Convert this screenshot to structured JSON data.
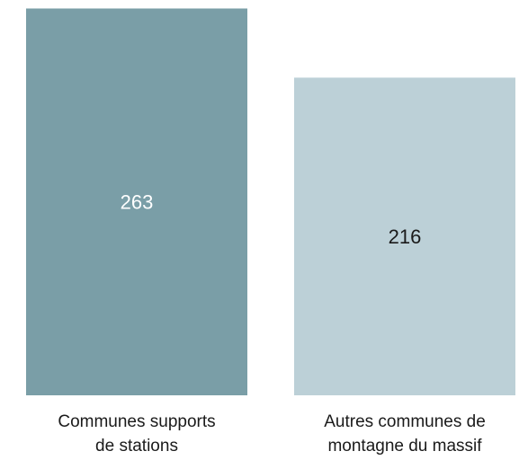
{
  "chart_data": {
    "type": "bar",
    "categories": [
      [
        "Communes supports",
        "de stations"
      ],
      [
        "Autres communes de",
        "montagne du massif"
      ]
    ],
    "values": [
      263,
      216
    ],
    "colors": [
      "#7a9ea7",
      "#bcd0d7"
    ],
    "value_label_colors": [
      "#ffffff",
      "#1a1a1a"
    ],
    "title": "",
    "xlabel": "",
    "ylabel": "",
    "grid": false,
    "legend": "none"
  }
}
